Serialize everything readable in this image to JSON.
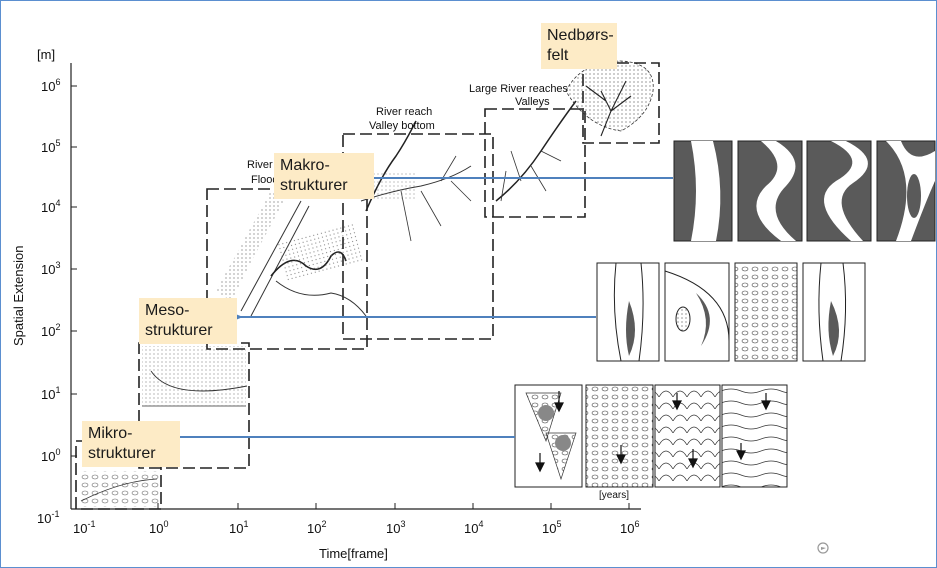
{
  "axes": {
    "y_unit": "[m]",
    "y_label": "Spatial Extension",
    "x_label": "Time[frame]",
    "x_unit_note": "[years]",
    "y_ticks": [
      {
        "base": "10",
        "exp": "-1"
      },
      {
        "base": "10",
        "exp": "0"
      },
      {
        "base": "10",
        "exp": "1"
      },
      {
        "base": "10",
        "exp": "2"
      },
      {
        "base": "10",
        "exp": "3"
      },
      {
        "base": "10",
        "exp": "4"
      },
      {
        "base": "10",
        "exp": "5"
      },
      {
        "base": "10",
        "exp": "6"
      }
    ],
    "x_ticks": [
      {
        "base": "10",
        "exp": "-1"
      },
      {
        "base": "10",
        "exp": "0"
      },
      {
        "base": "10",
        "exp": "1"
      },
      {
        "base": "10",
        "exp": "2"
      },
      {
        "base": "10",
        "exp": "3"
      },
      {
        "base": "10",
        "exp": "4"
      },
      {
        "base": "10",
        "exp": "5"
      },
      {
        "base": "10",
        "exp": "6"
      }
    ]
  },
  "scale_labels": {
    "large_river": "Large River reaches\nValleys",
    "river_reach": "River reach\nValley bottom",
    "river_segment": "River s\nFlood"
  },
  "callouts": {
    "nedborsfelt": "Nedbørs-\nfelt",
    "makro": "Makro-\nstrukturer",
    "meso": "Meso-\nstrukturer",
    "mikro": "Mikro-\nstrukturer"
  },
  "colors": {
    "arrow": "#4f81bd",
    "callout_bg": "#fdebc6",
    "panel_dark": "#5a5a5a",
    "frame_border": "#5b8fd0"
  },
  "icons": {
    "nav": "refresh-arrow-icon"
  }
}
